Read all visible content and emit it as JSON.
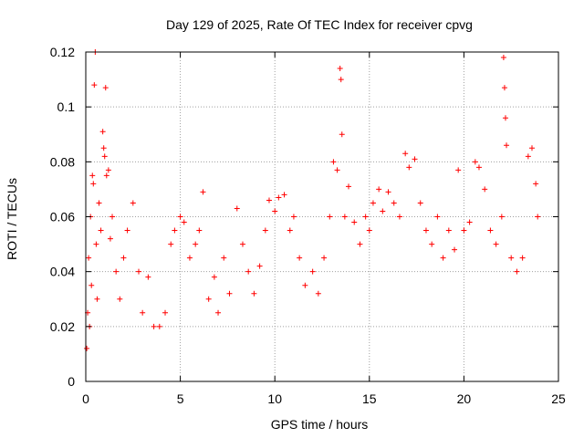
{
  "chart_data": {
    "type": "scatter",
    "title": "Day 129 of 2025, Rate Of TEC Index for receiver cpvg",
    "xlabel": "GPS time / hours",
    "ylabel": "ROTI / TECUs",
    "xlim": [
      0,
      25
    ],
    "ylim": [
      0,
      0.12
    ],
    "xticks": [
      "0",
      "5",
      "10",
      "15",
      "20",
      "25"
    ],
    "yticks": [
      "0",
      "0.02",
      "0.04",
      "0.06",
      "0.08",
      "0.1",
      "0.12"
    ],
    "xtick_values": [
      0,
      5,
      10,
      15,
      20,
      25
    ],
    "ytick_values": [
      0,
      0.02,
      0.04,
      0.06,
      0.08,
      0.1,
      0.12
    ],
    "grid": true,
    "marker": "+",
    "color": "#ff0000",
    "series": [
      {
        "values": [
          [
            0.05,
            0.012
          ],
          [
            0.1,
            0.025
          ],
          [
            0.15,
            0.045
          ],
          [
            0.2,
            0.02
          ],
          [
            0.25,
            0.06
          ],
          [
            0.3,
            0.035
          ],
          [
            0.35,
            0.075
          ],
          [
            0.4,
            0.072
          ],
          [
            0.45,
            0.108
          ],
          [
            0.5,
            0.12
          ],
          [
            0.55,
            0.05
          ],
          [
            0.6,
            0.03
          ],
          [
            0.7,
            0.065
          ],
          [
            0.8,
            0.055
          ],
          [
            0.9,
            0.091
          ],
          [
            0.95,
            0.085
          ],
          [
            1.0,
            0.082
          ],
          [
            1.05,
            0.107
          ],
          [
            1.1,
            0.075
          ],
          [
            1.2,
            0.077
          ],
          [
            1.3,
            0.052
          ],
          [
            1.4,
            0.06
          ],
          [
            1.6,
            0.04
          ],
          [
            1.8,
            0.03
          ],
          [
            2.0,
            0.045
          ],
          [
            2.2,
            0.055
          ],
          [
            2.5,
            0.065
          ],
          [
            2.8,
            0.04
          ],
          [
            3.0,
            0.025
          ],
          [
            3.3,
            0.038
          ],
          [
            3.6,
            0.02
          ],
          [
            3.9,
            0.02
          ],
          [
            4.2,
            0.025
          ],
          [
            4.5,
            0.05
          ],
          [
            4.7,
            0.055
          ],
          [
            5.0,
            0.06
          ],
          [
            5.2,
            0.058
          ],
          [
            5.5,
            0.045
          ],
          [
            5.8,
            0.05
          ],
          [
            6.0,
            0.055
          ],
          [
            6.2,
            0.069
          ],
          [
            6.5,
            0.03
          ],
          [
            6.8,
            0.038
          ],
          [
            7.0,
            0.025
          ],
          [
            7.3,
            0.045
          ],
          [
            7.6,
            0.032
          ],
          [
            8.0,
            0.063
          ],
          [
            8.3,
            0.05
          ],
          [
            8.6,
            0.04
          ],
          [
            8.9,
            0.032
          ],
          [
            9.2,
            0.042
          ],
          [
            9.5,
            0.055
          ],
          [
            9.7,
            0.066
          ],
          [
            10.0,
            0.062
          ],
          [
            10.2,
            0.067
          ],
          [
            10.5,
            0.068
          ],
          [
            10.8,
            0.055
          ],
          [
            11.0,
            0.06
          ],
          [
            11.3,
            0.045
          ],
          [
            11.6,
            0.035
          ],
          [
            12.0,
            0.04
          ],
          [
            12.3,
            0.032
          ],
          [
            12.6,
            0.045
          ],
          [
            12.9,
            0.06
          ],
          [
            13.1,
            0.08
          ],
          [
            13.3,
            0.077
          ],
          [
            13.45,
            0.114
          ],
          [
            13.5,
            0.11
          ],
          [
            13.55,
            0.09
          ],
          [
            13.7,
            0.06
          ],
          [
            13.9,
            0.071
          ],
          [
            14.2,
            0.058
          ],
          [
            14.5,
            0.05
          ],
          [
            14.8,
            0.06
          ],
          [
            15.0,
            0.055
          ],
          [
            15.2,
            0.065
          ],
          [
            15.5,
            0.07
          ],
          [
            15.7,
            0.062
          ],
          [
            16.0,
            0.069
          ],
          [
            16.3,
            0.065
          ],
          [
            16.6,
            0.06
          ],
          [
            16.9,
            0.083
          ],
          [
            17.1,
            0.078
          ],
          [
            17.4,
            0.081
          ],
          [
            17.7,
            0.065
          ],
          [
            18.0,
            0.055
          ],
          [
            18.3,
            0.05
          ],
          [
            18.6,
            0.06
          ],
          [
            18.9,
            0.045
          ],
          [
            19.2,
            0.055
          ],
          [
            19.5,
            0.048
          ],
          [
            19.7,
            0.077
          ],
          [
            20.0,
            0.055
          ],
          [
            20.3,
            0.058
          ],
          [
            20.6,
            0.08
          ],
          [
            20.8,
            0.078
          ],
          [
            21.1,
            0.07
          ],
          [
            21.4,
            0.055
          ],
          [
            21.7,
            0.05
          ],
          [
            22.0,
            0.06
          ],
          [
            22.1,
            0.118
          ],
          [
            22.15,
            0.107
          ],
          [
            22.2,
            0.096
          ],
          [
            22.25,
            0.086
          ],
          [
            22.5,
            0.045
          ],
          [
            22.8,
            0.04
          ],
          [
            23.1,
            0.045
          ],
          [
            23.4,
            0.082
          ],
          [
            23.6,
            0.085
          ],
          [
            23.8,
            0.072
          ],
          [
            23.9,
            0.06
          ]
        ]
      }
    ]
  }
}
